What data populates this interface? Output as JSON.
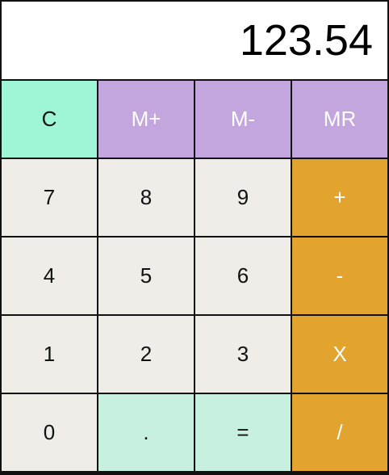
{
  "display": {
    "value": "123.54"
  },
  "keys": {
    "clear": "C",
    "memory_add": "M+",
    "memory_subtract": "M-",
    "memory_recall": "MR",
    "digit_7": "7",
    "digit_8": "8",
    "digit_9": "9",
    "add": "+",
    "digit_4": "4",
    "digit_5": "5",
    "digit_6": "6",
    "subtract": "-",
    "digit_1": "1",
    "digit_2": "2",
    "digit_3": "3",
    "multiply": "X",
    "digit_0": "0",
    "decimal": ".",
    "equals": "=",
    "divide": "/"
  },
  "colors": {
    "clear_key": "#9ef6d7",
    "memory_keys": "#c2a6dd",
    "digit_keys": "#f0ece8",
    "operator_keys": "#e2a32f",
    "decimal_equals_keys": "#c7f0df"
  }
}
